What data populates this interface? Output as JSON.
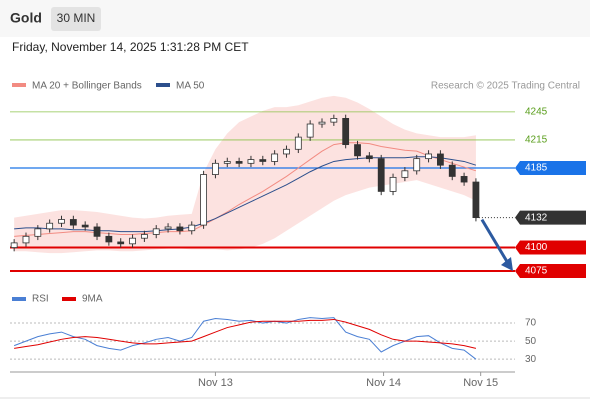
{
  "header": {
    "title": "Gold",
    "timeframe": "30 MIN",
    "timestamp": "Friday, November 14, 2025 1:31:28 PM CET"
  },
  "chart_data": {
    "type": "candlestick",
    "legend": [
      {
        "name": "MA 20 + Bollinger Bands",
        "color": "#f28b82"
      },
      {
        "name": "MA 50",
        "color": "#2c4f8c"
      }
    ],
    "credit": "Research © 2025 Trading Central",
    "xlim": [
      -0.35,
      42.3
    ],
    "xticks": [
      {
        "value": 17,
        "label": "Nov 13"
      },
      {
        "value": 31.2,
        "label": "Nov 14"
      },
      {
        "value": 39.4,
        "label": "Nov 15"
      }
    ],
    "ylim": [
      4060,
      4263
    ],
    "candles": [
      [
        4100,
        4109,
        4096,
        4105
      ],
      [
        4105,
        4116,
        4101,
        4112
      ],
      [
        4112,
        4124,
        4108,
        4120
      ],
      [
        4120,
        4130,
        4116,
        4126
      ],
      [
        4126,
        4134,
        4122,
        4130
      ],
      [
        4130,
        4134,
        4120,
        4124
      ],
      [
        4124,
        4128,
        4118,
        4122
      ],
      [
        4122,
        4126,
        4108,
        4112
      ],
      [
        4112,
        4116,
        4102,
        4106
      ],
      [
        4106,
        4110,
        4100,
        4104
      ],
      [
        4104,
        4114,
        4100,
        4110
      ],
      [
        4110,
        4118,
        4106,
        4114
      ],
      [
        4114,
        4124,
        4110,
        4120
      ],
      [
        4120,
        4126,
        4116,
        4122
      ],
      [
        4122,
        4126,
        4114,
        4118
      ],
      [
        4118,
        4128,
        4114,
        4124
      ],
      [
        4124,
        4182,
        4120,
        4178
      ],
      [
        4178,
        4194,
        4174,
        4190
      ],
      [
        4190,
        4196,
        4186,
        4192
      ],
      [
        4192,
        4196,
        4186,
        4190
      ],
      [
        4190,
        4198,
        4186,
        4194
      ],
      [
        4194,
        4198,
        4188,
        4192
      ],
      [
        4192,
        4204,
        4188,
        4200
      ],
      [
        4200,
        4209,
        4196,
        4205
      ],
      [
        4205,
        4222,
        4201,
        4218
      ],
      [
        4218,
        4236,
        4214,
        4232
      ],
      [
        4232,
        4238,
        4228,
        4234
      ],
      [
        4234,
        4242,
        4230,
        4238
      ],
      [
        4238,
        4242,
        4206,
        4210
      ],
      [
        4210,
        4214,
        4194,
        4198
      ],
      [
        4198,
        4202,
        4191,
        4195
      ],
      [
        4195,
        4199,
        4156,
        4160
      ],
      [
        4160,
        4179,
        4156,
        4175
      ],
      [
        4175,
        4186,
        4171,
        4182
      ],
      [
        4182,
        4199,
        4178,
        4195
      ],
      [
        4195,
        4204,
        4191,
        4200
      ],
      [
        4200,
        4204,
        4184,
        4188
      ],
      [
        4188,
        4192,
        4172,
        4176
      ],
      [
        4176,
        4180,
        4166,
        4170
      ],
      [
        4170,
        4174,
        4128,
        4132
      ]
    ],
    "ma20": [
      4112,
      4113,
      4114,
      4115,
      4116,
      4117,
      4117,
      4116,
      4115,
      4114,
      4114,
      4115,
      4116,
      4117,
      4117,
      4118,
      4124,
      4131,
      4138,
      4146,
      4153,
      4160,
      4168,
      4176,
      4185,
      4194,
      4203,
      4210,
      4212,
      4212,
      4211,
      4208,
      4206,
      4204,
      4203,
      4198,
      4194,
      4190,
      4186,
      4182
    ],
    "ma50": [
      4120,
      4121,
      4121,
      4120,
      4120,
      4119,
      4119,
      4118,
      4118,
      4117,
      4117,
      4117,
      4118,
      4119,
      4120,
      4122,
      4126,
      4131,
      4137,
      4143,
      4149,
      4155,
      4161,
      4167,
      4174,
      4181,
      4187,
      4192,
      4194,
      4195,
      4196,
      4196,
      4196,
      4196,
      4197,
      4197,
      4196,
      4194,
      4192,
      4188
    ],
    "bb_upper": [
      4132,
      4134,
      4136,
      4138,
      4140,
      4140,
      4139,
      4138,
      4136,
      4134,
      4132,
      4131,
      4132,
      4134,
      4135,
      4136,
      4180,
      4205,
      4222,
      4234,
      4240,
      4246,
      4250,
      4250,
      4252,
      4256,
      4260,
      4262,
      4260,
      4255,
      4248,
      4240,
      4232,
      4226,
      4222,
      4220,
      4218,
      4218,
      4218,
      4220
    ],
    "bb_lower": [
      4096,
      4096,
      4095,
      4094,
      4094,
      4095,
      4096,
      4097,
      4097,
      4096,
      4096,
      4097,
      4098,
      4099,
      4099,
      4098,
      4098,
      4098,
      4097,
      4098,
      4100,
      4104,
      4110,
      4118,
      4126,
      4134,
      4142,
      4150,
      4156,
      4160,
      4164,
      4166,
      4168,
      4170,
      4172,
      4168,
      4164,
      4160,
      4156,
      4150
    ],
    "levels": [
      {
        "value": 4245,
        "color": "#8bc34a"
      },
      {
        "value": 4215,
        "color": "#8bc34a"
      },
      {
        "value": 4185,
        "color": "#1a73e8"
      },
      {
        "value": 4100,
        "color": "#e00000"
      },
      {
        "value": 4075,
        "color": "#e00000"
      }
    ],
    "last_price": 4132,
    "rsi": {
      "legend": [
        {
          "name": "RSI",
          "color": "#4a7fd4"
        },
        {
          "name": "9MA",
          "color": "#e00000"
        }
      ],
      "ylim": [
        18,
        90
      ],
      "yticks": [
        70,
        50,
        30
      ],
      "rsi": [
        45,
        50,
        55,
        58,
        60,
        55,
        52,
        45,
        42,
        40,
        45,
        48,
        52,
        54,
        50,
        54,
        72,
        75,
        74,
        72,
        73,
        70,
        72,
        70,
        74,
        76,
        75,
        76,
        60,
        55,
        52,
        38,
        45,
        50,
        55,
        56,
        48,
        42,
        40,
        30
      ],
      "ma9": [
        42,
        44,
        46,
        49,
        52,
        54,
        55,
        54,
        52,
        50,
        48,
        47,
        47,
        48,
        49,
        50,
        55,
        60,
        65,
        68,
        71,
        72,
        72,
        72,
        72,
        73,
        73,
        74,
        71,
        67,
        63,
        57,
        52,
        50,
        50,
        49,
        48,
        47,
        45,
        42
      ]
    }
  }
}
